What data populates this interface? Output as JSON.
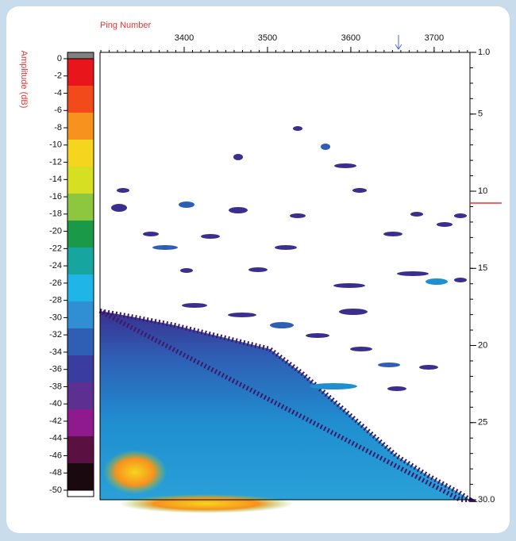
{
  "chart_data": {
    "type": "heatmap",
    "xlabel": "Ping Number",
    "xlim": [
      3299,
      3743
    ],
    "xticks": [
      3400,
      3500,
      3600,
      3700
    ],
    "ylim": [
      1,
      30
    ],
    "yticks": [
      {
        "value": 1,
        "label": "1.0"
      },
      5,
      10,
      15,
      20,
      25,
      {
        "value": 30,
        "label": "30.0"
      }
    ],
    "y_inverted": true,
    "colorbar": {
      "label": "Amplitude (dB)",
      "lim": [
        0,
        -50
      ],
      "ticks": [
        0,
        -2,
        -4,
        -6,
        -8,
        -10,
        -12,
        -14,
        -16,
        -18,
        -20,
        -22,
        -24,
        -26,
        -28,
        -30,
        -32,
        -34,
        -36,
        -38,
        -40,
        -42,
        -44,
        -46,
        -48,
        -50
      ],
      "colors": [
        "#e8161a",
        "#f24a1a",
        "#f7921e",
        "#f6d51f",
        "#d7df23",
        "#8dc63f",
        "#1a9a48",
        "#17a5a0",
        "#1fb5e6",
        "#2f8fd2",
        "#2e5fb5",
        "#3a3c9f",
        "#5c2f91",
        "#8e1a8e",
        "#5a1040",
        "#1a0a10"
      ]
    }
  }
}
